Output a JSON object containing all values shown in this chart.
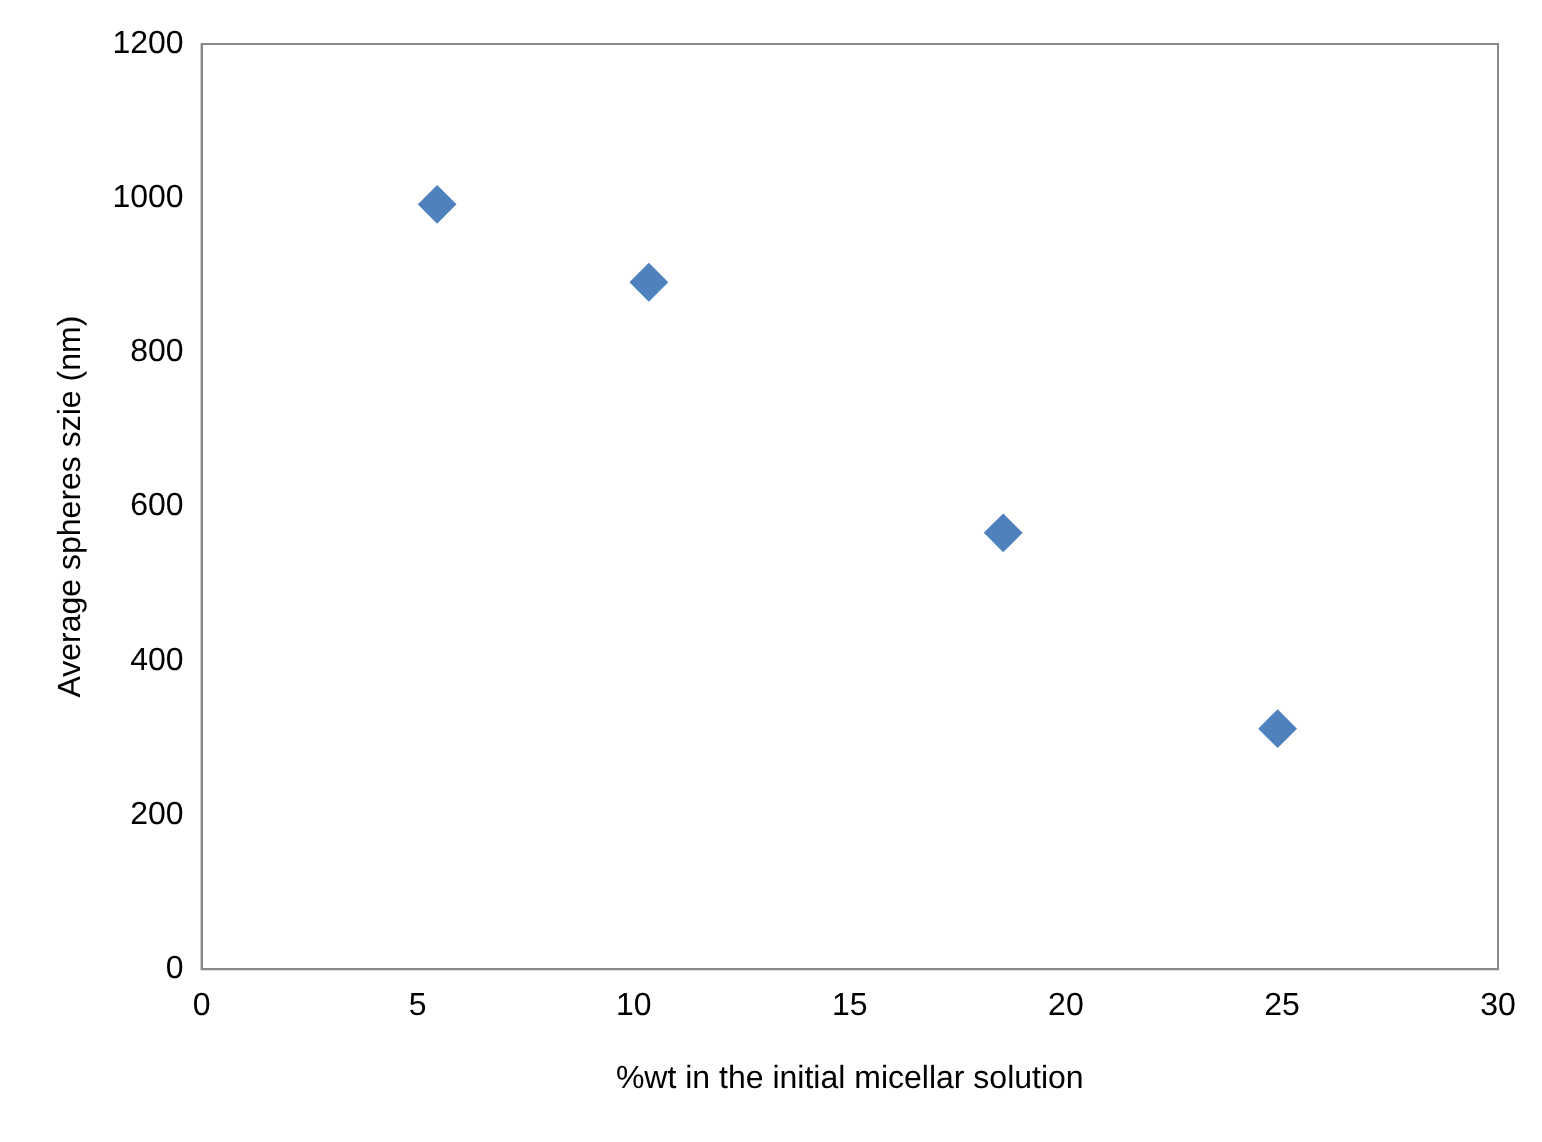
{
  "chart_data": {
    "type": "scatter",
    "xlabel": "%wt in the initial micellar solution",
    "ylabel": "Average spheres szie (nm)",
    "x": [
      5.45,
      10.35,
      18.55,
      24.9
    ],
    "series": [
      {
        "color": "#4f81bd",
        "values": [
          992,
          891,
          566,
          312
        ]
      }
    ],
    "xlim": [
      0,
      30
    ],
    "xticks": [
      0,
      5,
      10,
      15,
      20,
      25,
      30
    ],
    "ylim": [
      0,
      1200
    ],
    "yticks": [
      0,
      200,
      400,
      600,
      800,
      1000,
      1200
    ],
    "grid": false,
    "legend": false,
    "marker": "diamond"
  }
}
